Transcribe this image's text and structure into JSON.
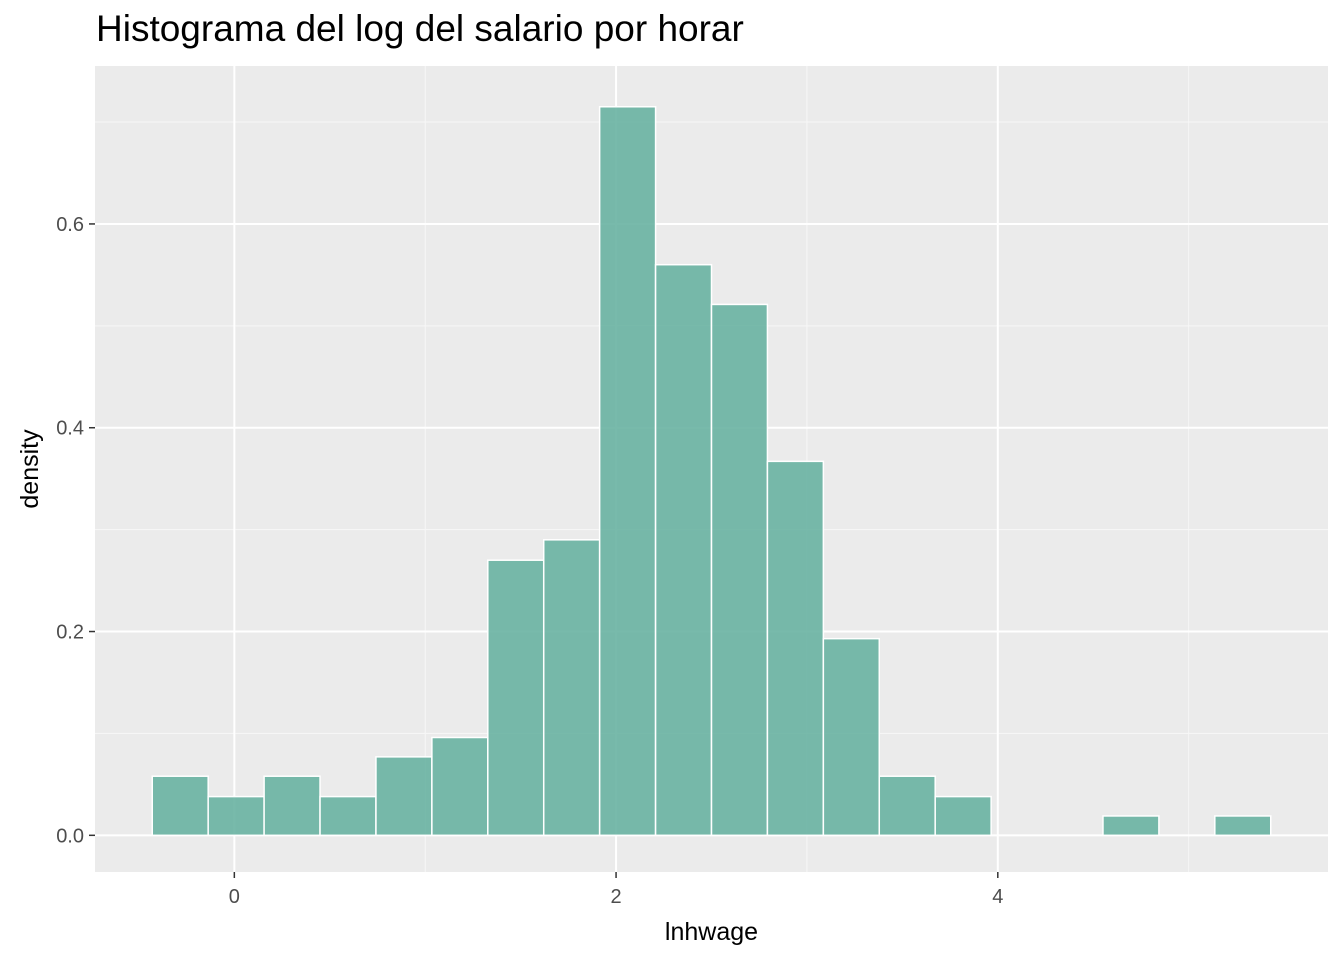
{
  "colors": {
    "panel": "#EBEBEB",
    "grid_major": "#FFFFFF",
    "grid_minor": "#F7F7F7",
    "bar_fill": "#69B3A2",
    "bar_edge": "#FFFFFF",
    "tick_text": "#4D4D4D"
  },
  "chart_data": {
    "type": "bar",
    "subtype": "histogram",
    "title": "Histograma del log del salario por horar",
    "xlabel": "lnhwage",
    "ylabel": "density",
    "xlim": [
      -0.73,
      5.73
    ],
    "ylim": [
      -0.036,
      0.755
    ],
    "x_ticks": [
      0,
      2,
      4
    ],
    "x_tick_labels": [
      "0",
      "2",
      "4"
    ],
    "x_minor_ticks": [
      1,
      3,
      5
    ],
    "y_ticks": [
      0.0,
      0.2,
      0.4,
      0.6
    ],
    "y_tick_labels": [
      "0.0",
      "0.2",
      "0.4",
      "0.6"
    ],
    "y_minor_ticks": [
      0.1,
      0.3,
      0.5,
      0.7
    ],
    "grid": true,
    "bin_width": 0.293,
    "bin_starts": [
      -0.43,
      -0.137,
      0.156,
      0.449,
      0.742,
      1.035,
      1.328,
      1.621,
      1.914,
      2.207,
      2.5,
      2.793,
      3.086,
      3.379,
      3.672,
      3.965,
      4.258,
      4.551,
      4.844,
      5.137
    ],
    "values": [
      0.058,
      0.038,
      0.058,
      0.038,
      0.077,
      0.096,
      0.27,
      0.29,
      0.715,
      0.56,
      0.521,
      0.367,
      0.193,
      0.058,
      0.038,
      0.0,
      0.0,
      0.019,
      0.0,
      0.019
    ]
  }
}
